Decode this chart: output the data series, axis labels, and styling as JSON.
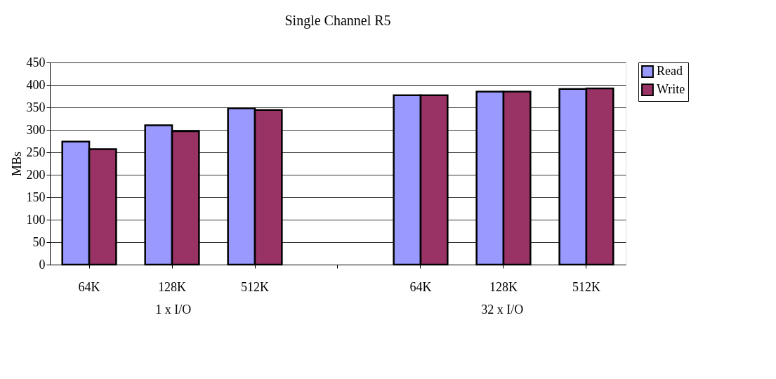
{
  "chart_data": {
    "type": "bar",
    "title": "Single Channel R5",
    "ylabel": "MBs",
    "categories": [
      "64K",
      "128K",
      "512K",
      null,
      "64K",
      "128K",
      "512K"
    ],
    "series": [
      {
        "name": "Read",
        "color": "#9999ff",
        "values": [
          274,
          310,
          348,
          null,
          377,
          385,
          391
        ]
      },
      {
        "name": "Write",
        "color": "#993366",
        "values": [
          257,
          297,
          344,
          null,
          377,
          385,
          392
        ]
      }
    ],
    "ylim": [
      0,
      450
    ],
    "yticks": [
      0,
      50,
      100,
      150,
      200,
      250,
      300,
      350,
      400,
      450
    ],
    "grid": "y",
    "legend": "right",
    "annotations": [
      "1 x I/O",
      "32 x I/O"
    ]
  }
}
